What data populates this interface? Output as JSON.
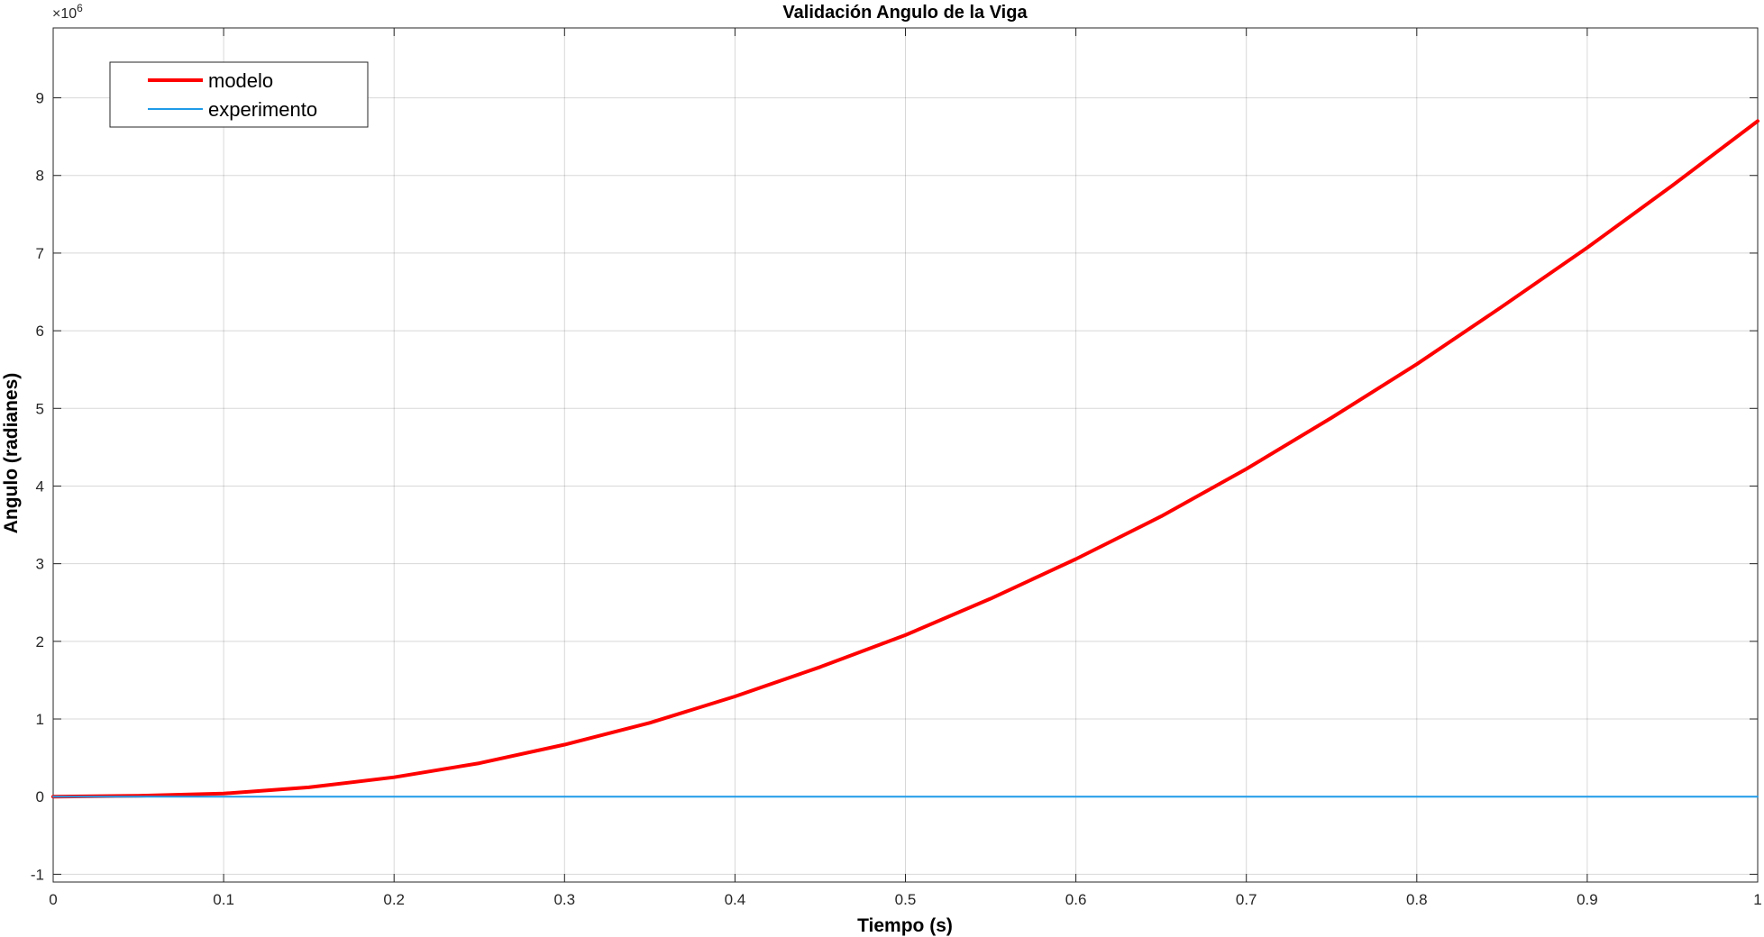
{
  "chart_data": {
    "type": "line",
    "title": "Validación Angulo de la Viga",
    "xlabel": "Tiempo (s)",
    "ylabel": "Angulo (radianes)",
    "xlim": [
      0,
      1
    ],
    "ylim": [
      -1.1,
      9.9
    ],
    "y_exponent_label": "×10",
    "y_exponent_power": "6",
    "x_ticks": [
      0,
      0.1,
      0.2,
      0.3,
      0.4,
      0.5,
      0.6,
      0.7,
      0.8,
      0.9,
      1
    ],
    "x_tick_labels": [
      "0",
      "0.1",
      "0.2",
      "0.3",
      "0.4",
      "0.5",
      "0.6",
      "0.7",
      "0.8",
      "0.9",
      "1"
    ],
    "y_ticks": [
      -1,
      0,
      1,
      2,
      3,
      4,
      5,
      6,
      7,
      8,
      9
    ],
    "y_tick_labels": [
      "-1",
      "0",
      "1",
      "2",
      "3",
      "4",
      "5",
      "6",
      "7",
      "8",
      "9"
    ],
    "grid": true,
    "legend_position": "top-left",
    "series": [
      {
        "name": "modelo",
        "color": "#ff0000",
        "x": [
          0,
          0.05,
          0.1,
          0.15,
          0.2,
          0.25,
          0.3,
          0.35,
          0.4,
          0.45,
          0.5,
          0.55,
          0.6,
          0.65,
          0.7,
          0.75,
          0.8,
          0.85,
          0.9,
          0.95,
          1
        ],
        "y": [
          0,
          0.01,
          0.04,
          0.12,
          0.25,
          0.43,
          0.67,
          0.95,
          1.29,
          1.67,
          2.08,
          2.55,
          3.06,
          3.61,
          4.22,
          4.88,
          5.57,
          6.31,
          7.07,
          7.87,
          8.7
        ]
      },
      {
        "name": "experimento",
        "color": "#0072bd",
        "x": [
          0,
          1
        ],
        "y": [
          0,
          0
        ]
      }
    ]
  }
}
